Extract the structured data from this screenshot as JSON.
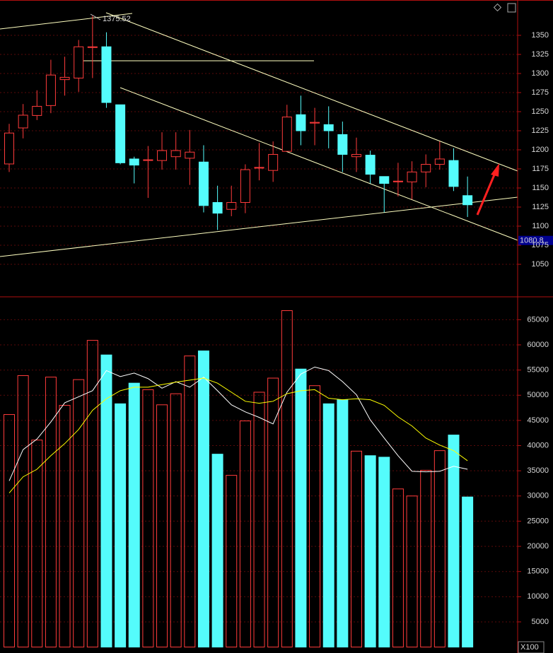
{
  "chart_data": [
    {
      "type": "candlestick",
      "open": [
        1181.5,
        1228.7,
        1245,
        1258,
        1292,
        1294,
        1334,
        1335,
        1259,
        1188,
        1186,
        1186,
        1191,
        1189,
        1184,
        1131,
        1122,
        1131,
        1176,
        1173,
        1198,
        1246,
        1235,
        1233,
        1220,
        1191,
        1193,
        1165,
        1158,
        1158,
        1171,
        1181,
        1186,
        1140
      ],
      "high": [
        1234,
        1260,
        1278,
        1318,
        1322,
        1344,
        1375.52,
        1354,
        1259,
        1191,
        1205,
        1223,
        1223,
        1226,
        1206,
        1153,
        1153,
        1181,
        1209,
        1211,
        1259,
        1271,
        1255,
        1257,
        1237,
        1216,
        1199,
        1165,
        1183,
        1185,
        1194,
        1211,
        1202,
        1165
      ],
      "low": [
        1171,
        1215,
        1239,
        1248,
        1271,
        1276,
        1294,
        1255,
        1181,
        1156,
        1137,
        1174,
        1174,
        1154,
        1118,
        1095,
        1113,
        1117,
        1160,
        1158,
        1198,
        1206,
        1206,
        1202,
        1171,
        1171,
        1156,
        1118,
        1139,
        1135,
        1151,
        1174,
        1146,
        1112
      ],
      "close": [
        1222,
        1245.4,
        1257,
        1298,
        1295,
        1335,
        1335,
        1262,
        1183,
        1180,
        1187,
        1199,
        1199,
        1197,
        1127,
        1117,
        1131,
        1174,
        1177,
        1194,
        1243,
        1225,
        1236,
        1225,
        1194,
        1194,
        1168,
        1156,
        1159,
        1171,
        1181,
        1188,
        1152,
        1128
      ],
      "up_color": "#ff3b3b",
      "down_color": "#54fcfc",
      "ylim": [
        1007.4,
        1396.3
      ],
      "yticks": [
        1050,
        1075,
        1100,
        1125,
        1150,
        1175,
        1200,
        1225,
        1250,
        1275,
        1300,
        1325,
        1350
      ],
      "last_price": 1080.8,
      "grid": true
    },
    {
      "type": "volume",
      "values": [
        46170,
        53900,
        41100,
        53600,
        48000,
        53100,
        60900,
        58000,
        48300,
        52400,
        51100,
        48100,
        50300,
        57800,
        58800,
        38300,
        34100,
        44900,
        50600,
        53400,
        66800,
        55200,
        51900,
        48300,
        49100,
        38900,
        38000,
        37700,
        31400,
        30000,
        35100,
        39000,
        42100,
        29800
      ],
      "lines": [
        {
          "color": "#ffffff",
          "values": [
            33000,
            39200,
            41300,
            44700,
            48500,
            49700,
            50900,
            54900,
            53700,
            54400,
            53300,
            51400,
            52700,
            51600,
            53600,
            50900,
            48100,
            46700,
            45600,
            44300,
            50600,
            54200,
            55600,
            54900,
            52700,
            50100,
            45100,
            41500,
            38000,
            34900,
            34800,
            34900,
            35900,
            35300
          ]
        },
        {
          "color": "#ffff00",
          "values": [
            30600,
            33800,
            35300,
            38000,
            40400,
            43200,
            47000,
            49300,
            50900,
            51600,
            51600,
            52100,
            52600,
            53000,
            53400,
            52400,
            50600,
            48800,
            48400,
            48800,
            50300,
            50900,
            51100,
            49400,
            49100,
            49300,
            49100,
            48000,
            45700,
            43900,
            41500,
            40100,
            39000,
            37000
          ]
        }
      ],
      "ylim": [
        0,
        69400
      ],
      "yticks": [
        5000,
        10000,
        15000,
        20000,
        25000,
        30000,
        35000,
        40000,
        45000,
        50000,
        55000,
        60000,
        65000
      ],
      "unit_label": "X100",
      "grid": true
    }
  ]
}
